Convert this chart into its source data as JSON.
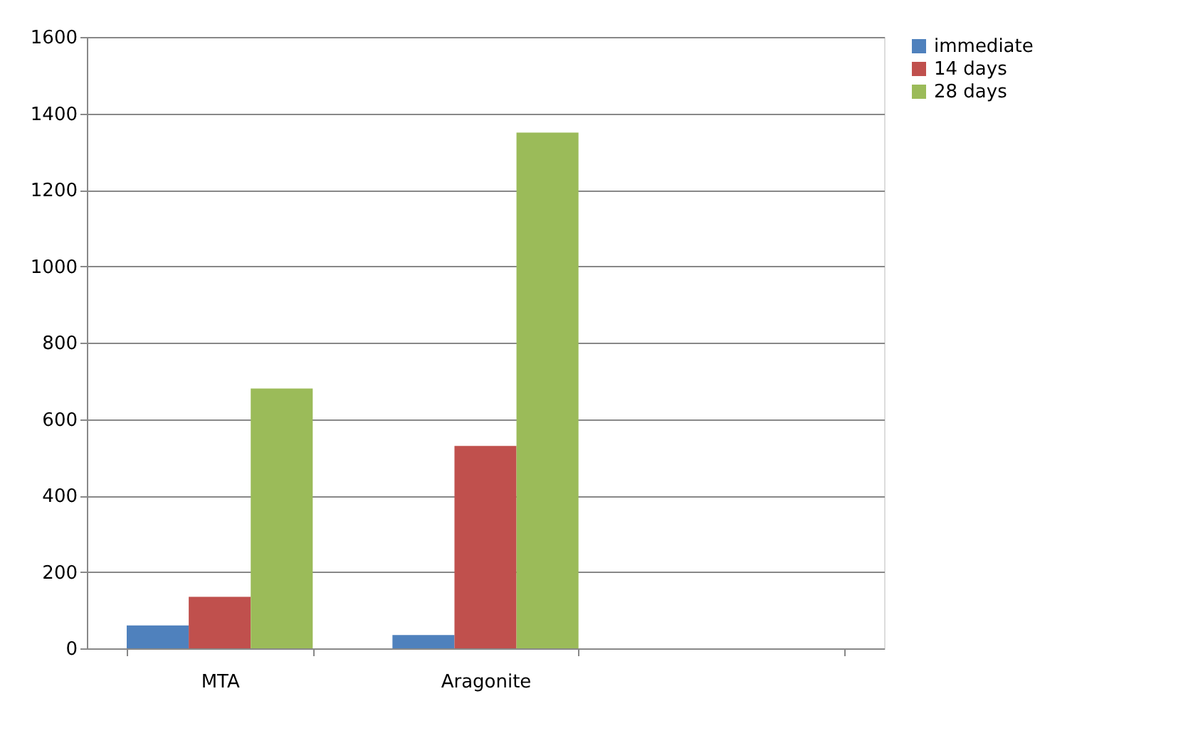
{
  "chart_data": {
    "type": "bar",
    "categories": [
      "MTA",
      "Aragonite",
      null
    ],
    "series": [
      {
        "name": "immediate",
        "color": "#4f81bd",
        "values": [
          60,
          35,
          null
        ]
      },
      {
        "name": "14 days",
        "color": "#c0504d",
        "values": [
          135,
          530,
          null
        ]
      },
      {
        "name": "28 days",
        "color": "#9bbb59",
        "values": [
          680,
          1350,
          null
        ]
      }
    ],
    "ylim": [
      0,
      1600
    ],
    "yticks": [
      0,
      200,
      400,
      600,
      800,
      1000,
      1200,
      1400,
      1600
    ],
    "grid": "y",
    "legend": "right"
  }
}
